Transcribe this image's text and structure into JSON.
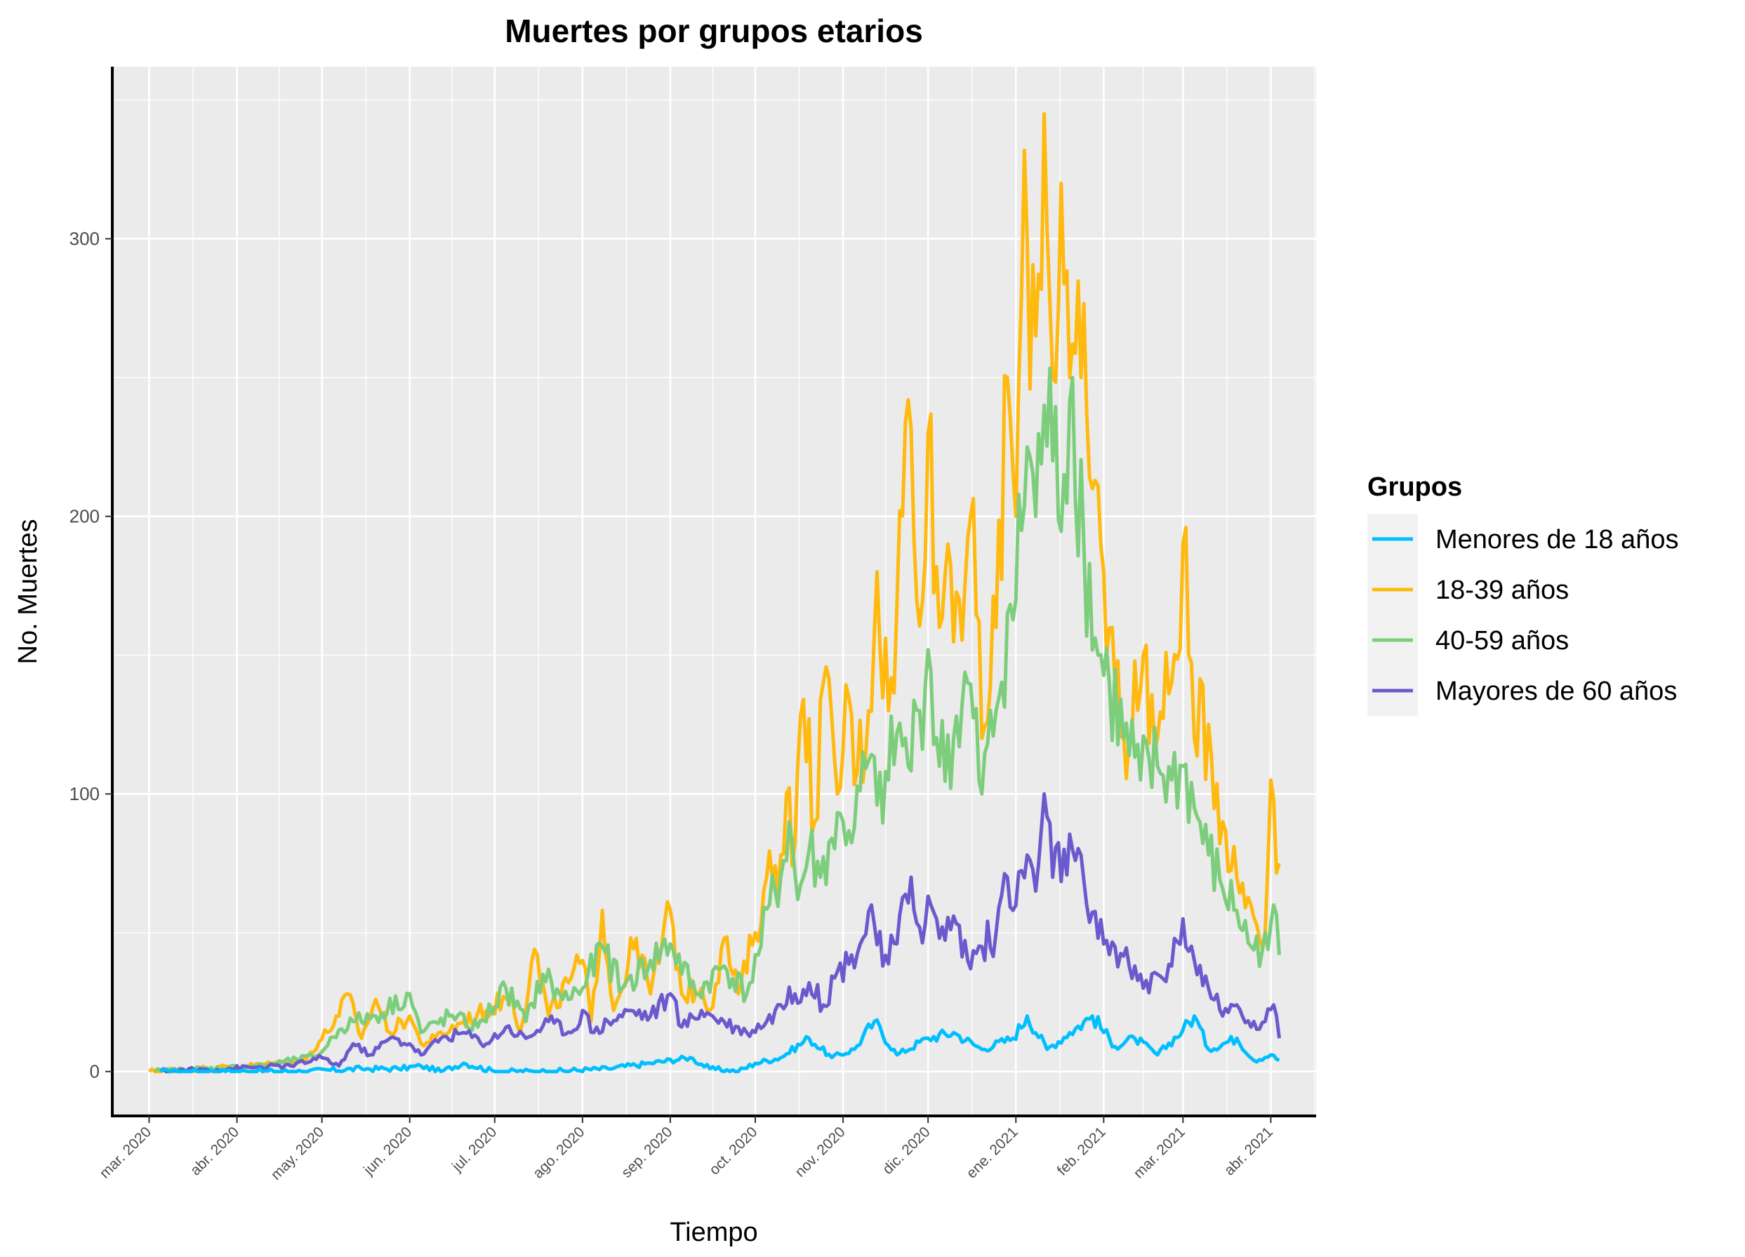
{
  "chart_data": {
    "type": "line",
    "title": "Muertes por grupos etarios",
    "xlabel": "Tiempo",
    "ylabel": "No. Muertes",
    "ylim": [
      -16,
      362
    ],
    "xlim": [
      "2020-02-17",
      "2021-04-17"
    ],
    "yticks": [
      0,
      100,
      200,
      300
    ],
    "xticks": [
      {
        "date": "2020-03-01",
        "label": "mar. 2020"
      },
      {
        "date": "2020-04-01",
        "label": "abr. 2020"
      },
      {
        "date": "2020-05-01",
        "label": "may. 2020"
      },
      {
        "date": "2020-06-01",
        "label": "jun. 2020"
      },
      {
        "date": "2020-07-01",
        "label": "jul. 2020"
      },
      {
        "date": "2020-08-01",
        "label": "ago. 2020"
      },
      {
        "date": "2020-09-01",
        "label": "sep. 2020"
      },
      {
        "date": "2020-10-01",
        "label": "oct. 2020"
      },
      {
        "date": "2020-11-01",
        "label": "nov. 2020"
      },
      {
        "date": "2020-12-01",
        "label": "dic. 2020"
      },
      {
        "date": "2021-01-01",
        "label": "ene. 2021"
      },
      {
        "date": "2021-02-01",
        "label": "feb. 2021"
      },
      {
        "date": "2021-03-01",
        "label": "mar. 2021"
      },
      {
        "date": "2021-04-01",
        "label": "abr. 2021"
      }
    ],
    "grid": true,
    "legend": {
      "title": "Grupos",
      "position": "right"
    },
    "series": [
      {
        "name": "Menores de 18 años",
        "color": "#00BFFF",
        "points": [
          [
            "2020-03-05",
            0
          ],
          [
            "2020-04-25",
            0
          ],
          [
            "2020-05-15",
            1
          ],
          [
            "2020-05-28",
            1
          ],
          [
            "2020-06-05",
            2
          ],
          [
            "2020-06-12",
            0
          ],
          [
            "2020-06-20",
            3
          ],
          [
            "2020-07-01",
            0
          ],
          [
            "2020-07-20",
            0
          ],
          [
            "2020-08-10",
            1
          ],
          [
            "2020-08-25",
            3
          ],
          [
            "2020-09-08",
            5
          ],
          [
            "2020-09-15",
            1
          ],
          [
            "2020-09-25",
            0
          ],
          [
            "2020-10-01",
            3
          ],
          [
            "2020-10-10",
            5
          ],
          [
            "2020-10-20",
            12
          ],
          [
            "2020-10-28",
            5
          ],
          [
            "2020-11-05",
            8
          ],
          [
            "2020-11-12",
            18
          ],
          [
            "2020-11-20",
            6
          ],
          [
            "2020-12-01",
            12
          ],
          [
            "2020-12-10",
            14
          ],
          [
            "2020-12-20",
            8
          ],
          [
            "2020-12-31",
            12
          ],
          [
            "2021-01-05",
            20
          ],
          [
            "2021-01-12",
            8
          ],
          [
            "2021-01-20",
            14
          ],
          [
            "2021-01-28",
            20
          ],
          [
            "2021-02-05",
            9
          ],
          [
            "2021-02-12",
            12
          ],
          [
            "2021-02-20",
            6
          ],
          [
            "2021-03-01",
            15
          ],
          [
            "2021-03-05",
            20
          ],
          [
            "2021-03-10",
            8
          ],
          [
            "2021-03-20",
            12
          ],
          [
            "2021-03-26",
            4
          ],
          [
            "2021-04-01",
            6
          ],
          [
            "2021-04-04",
            4
          ]
        ]
      },
      {
        "name": "18-39 años",
        "color": "#FFB90F",
        "points": [
          [
            "2020-03-01",
            0
          ],
          [
            "2020-04-05",
            2
          ],
          [
            "2020-04-25",
            4
          ],
          [
            "2020-05-07",
            20
          ],
          [
            "2020-05-10",
            28
          ],
          [
            "2020-05-15",
            12
          ],
          [
            "2020-05-20",
            26
          ],
          [
            "2020-05-25",
            14
          ],
          [
            "2020-06-01",
            20
          ],
          [
            "2020-06-05",
            10
          ],
          [
            "2020-06-10",
            12
          ],
          [
            "2020-06-20",
            18
          ],
          [
            "2020-06-28",
            22
          ],
          [
            "2020-07-07",
            28
          ],
          [
            "2020-07-10",
            14
          ],
          [
            "2020-07-15",
            44
          ],
          [
            "2020-07-20",
            20
          ],
          [
            "2020-07-27",
            32
          ],
          [
            "2020-08-01",
            40
          ],
          [
            "2020-08-04",
            18
          ],
          [
            "2020-08-08",
            58
          ],
          [
            "2020-08-12",
            22
          ],
          [
            "2020-08-20",
            48
          ],
          [
            "2020-08-25",
            28
          ],
          [
            "2020-09-01",
            58
          ],
          [
            "2020-09-05",
            28
          ],
          [
            "2020-09-12",
            30
          ],
          [
            "2020-09-15",
            22
          ],
          [
            "2020-09-20",
            48
          ],
          [
            "2020-09-25",
            28
          ],
          [
            "2020-10-01",
            50
          ],
          [
            "2020-10-05",
            70
          ],
          [
            "2020-10-10",
            78
          ],
          [
            "2020-10-12",
            100
          ],
          [
            "2020-10-15",
            82
          ],
          [
            "2020-10-18",
            134
          ],
          [
            "2020-10-22",
            90
          ],
          [
            "2020-10-25",
            140
          ],
          [
            "2020-10-30",
            100
          ],
          [
            "2020-11-03",
            135
          ],
          [
            "2020-11-06",
            108
          ],
          [
            "2020-11-10",
            130
          ],
          [
            "2020-11-13",
            180
          ],
          [
            "2020-11-17",
            130
          ],
          [
            "2020-11-20",
            168
          ],
          [
            "2020-11-24",
            242
          ],
          [
            "2020-11-27",
            170
          ],
          [
            "2020-12-01",
            230
          ],
          [
            "2020-12-05",
            160
          ],
          [
            "2020-12-08",
            190
          ],
          [
            "2020-12-12",
            170
          ],
          [
            "2020-12-16",
            200
          ],
          [
            "2020-12-20",
            120
          ],
          [
            "2020-12-25",
            160
          ],
          [
            "2020-12-29",
            250
          ],
          [
            "2021-01-01",
            200
          ],
          [
            "2021-01-03",
            280
          ],
          [
            "2021-01-05",
            300
          ],
          [
            "2021-01-08",
            265
          ],
          [
            "2021-01-11",
            345
          ],
          [
            "2021-01-14",
            250
          ],
          [
            "2021-01-17",
            320
          ],
          [
            "2021-01-20",
            250
          ],
          [
            "2021-01-24",
            250
          ],
          [
            "2021-01-28",
            210
          ],
          [
            "2021-02-01",
            180
          ],
          [
            "2021-02-05",
            140
          ],
          [
            "2021-02-10",
            120
          ],
          [
            "2021-02-15",
            150
          ],
          [
            "2021-02-20",
            120
          ],
          [
            "2021-02-25",
            140
          ],
          [
            "2021-03-01",
            190
          ],
          [
            "2021-03-05",
            120
          ],
          [
            "2021-03-10",
            125
          ],
          [
            "2021-03-15",
            90
          ],
          [
            "2021-03-20",
            70
          ],
          [
            "2021-03-25",
            60
          ],
          [
            "2021-03-30",
            50
          ],
          [
            "2021-04-01",
            105
          ],
          [
            "2021-04-04",
            75
          ]
        ]
      },
      {
        "name": "40-59 años",
        "color": "#7CCD7C",
        "points": [
          [
            "2020-03-03",
            0
          ],
          [
            "2020-04-10",
            2
          ],
          [
            "2020-04-30",
            6
          ],
          [
            "2020-05-07",
            15
          ],
          [
            "2020-05-12",
            18
          ],
          [
            "2020-05-20",
            20
          ],
          [
            "2020-06-01",
            28
          ],
          [
            "2020-06-05",
            14
          ],
          [
            "2020-06-15",
            20
          ],
          [
            "2020-06-25",
            16
          ],
          [
            "2020-07-05",
            30
          ],
          [
            "2020-07-12",
            18
          ],
          [
            "2020-07-18",
            35
          ],
          [
            "2020-07-25",
            26
          ],
          [
            "2020-08-01",
            30
          ],
          [
            "2020-08-08",
            45
          ],
          [
            "2020-08-15",
            30
          ],
          [
            "2020-08-25",
            40
          ],
          [
            "2020-09-01",
            46
          ],
          [
            "2020-09-10",
            28
          ],
          [
            "2020-09-20",
            38
          ],
          [
            "2020-09-28",
            28
          ],
          [
            "2020-10-02",
            42
          ],
          [
            "2020-10-06",
            60
          ],
          [
            "2020-10-10",
            70
          ],
          [
            "2020-10-13",
            90
          ],
          [
            "2020-10-16",
            62
          ],
          [
            "2020-10-20",
            80
          ],
          [
            "2020-10-24",
            70
          ],
          [
            "2020-10-28",
            84
          ],
          [
            "2020-11-01",
            90
          ],
          [
            "2020-11-05",
            88
          ],
          [
            "2020-11-10",
            112
          ],
          [
            "2020-11-13",
            96
          ],
          [
            "2020-11-17",
            105
          ],
          [
            "2020-11-20",
            122
          ],
          [
            "2020-11-24",
            110
          ],
          [
            "2020-11-28",
            130
          ],
          [
            "2020-12-01",
            152
          ],
          [
            "2020-12-05",
            110
          ],
          [
            "2020-12-10",
            120
          ],
          [
            "2020-12-15",
            140
          ],
          [
            "2020-12-20",
            100
          ],
          [
            "2020-12-25",
            130
          ],
          [
            "2020-12-29",
            165
          ],
          [
            "2021-01-01",
            170
          ],
          [
            "2021-01-05",
            225
          ],
          [
            "2021-01-08",
            200
          ],
          [
            "2021-01-11",
            240
          ],
          [
            "2021-01-14",
            220
          ],
          [
            "2021-01-18",
            215
          ],
          [
            "2021-01-21",
            250
          ],
          [
            "2021-01-25",
            190
          ],
          [
            "2021-01-30",
            150
          ],
          [
            "2021-02-03",
            140
          ],
          [
            "2021-02-08",
            120
          ],
          [
            "2021-02-14",
            105
          ],
          [
            "2021-02-20",
            110
          ],
          [
            "2021-02-25",
            105
          ],
          [
            "2021-03-01",
            110
          ],
          [
            "2021-03-05",
            95
          ],
          [
            "2021-03-10",
            78
          ],
          [
            "2021-03-15",
            66
          ],
          [
            "2021-03-20",
            58
          ],
          [
            "2021-03-25",
            45
          ],
          [
            "2021-03-31",
            44
          ],
          [
            "2021-04-02",
            60
          ],
          [
            "2021-04-04",
            42
          ]
        ]
      },
      {
        "name": "Mayores de 60 años",
        "color": "#6A5ACD",
        "points": [
          [
            "2020-03-05",
            0
          ],
          [
            "2020-04-20",
            2
          ],
          [
            "2020-05-01",
            5
          ],
          [
            "2020-05-07",
            2
          ],
          [
            "2020-05-12",
            10
          ],
          [
            "2020-05-18",
            6
          ],
          [
            "2020-05-25",
            12
          ],
          [
            "2020-06-01",
            10
          ],
          [
            "2020-06-05",
            6
          ],
          [
            "2020-06-12",
            12
          ],
          [
            "2020-06-20",
            14
          ],
          [
            "2020-06-28",
            10
          ],
          [
            "2020-07-05",
            16
          ],
          [
            "2020-07-12",
            12
          ],
          [
            "2020-07-20",
            18
          ],
          [
            "2020-07-28",
            14
          ],
          [
            "2020-08-01",
            22
          ],
          [
            "2020-08-05",
            14
          ],
          [
            "2020-08-10",
            18
          ],
          [
            "2020-08-18",
            22
          ],
          [
            "2020-08-25",
            20
          ],
          [
            "2020-09-01",
            28
          ],
          [
            "2020-09-05",
            16
          ],
          [
            "2020-09-12",
            22
          ],
          [
            "2020-09-20",
            18
          ],
          [
            "2020-09-28",
            14
          ],
          [
            "2020-10-05",
            18
          ],
          [
            "2020-10-10",
            24
          ],
          [
            "2020-10-15",
            28
          ],
          [
            "2020-10-20",
            32
          ],
          [
            "2020-10-25",
            24
          ],
          [
            "2020-10-30",
            36
          ],
          [
            "2020-11-04",
            42
          ],
          [
            "2020-11-08",
            48
          ],
          [
            "2020-11-11",
            60
          ],
          [
            "2020-11-15",
            38
          ],
          [
            "2020-11-20",
            46
          ],
          [
            "2020-11-25",
            70
          ],
          [
            "2020-11-28",
            52
          ],
          [
            "2020-12-02",
            60
          ],
          [
            "2020-12-05",
            48
          ],
          [
            "2020-12-10",
            56
          ],
          [
            "2020-12-15",
            40
          ],
          [
            "2020-12-20",
            45
          ],
          [
            "2020-12-25",
            50
          ],
          [
            "2020-12-29",
            70
          ],
          [
            "2021-01-01",
            60
          ],
          [
            "2021-01-05",
            78
          ],
          [
            "2021-01-08",
            65
          ],
          [
            "2021-01-11",
            100
          ],
          [
            "2021-01-14",
            70
          ],
          [
            "2021-01-18",
            80
          ],
          [
            "2021-01-22",
            76
          ],
          [
            "2021-01-26",
            60
          ],
          [
            "2021-01-30",
            48
          ],
          [
            "2021-02-05",
            45
          ],
          [
            "2021-02-10",
            38
          ],
          [
            "2021-02-15",
            30
          ],
          [
            "2021-02-20",
            35
          ],
          [
            "2021-02-25",
            38
          ],
          [
            "2021-03-01",
            55
          ],
          [
            "2021-03-05",
            40
          ],
          [
            "2021-03-10",
            30
          ],
          [
            "2021-03-15",
            20
          ],
          [
            "2021-03-20",
            24
          ],
          [
            "2021-03-25",
            16
          ],
          [
            "2021-03-30",
            18
          ],
          [
            "2021-04-02",
            24
          ],
          [
            "2021-04-04",
            12
          ]
        ]
      }
    ]
  }
}
